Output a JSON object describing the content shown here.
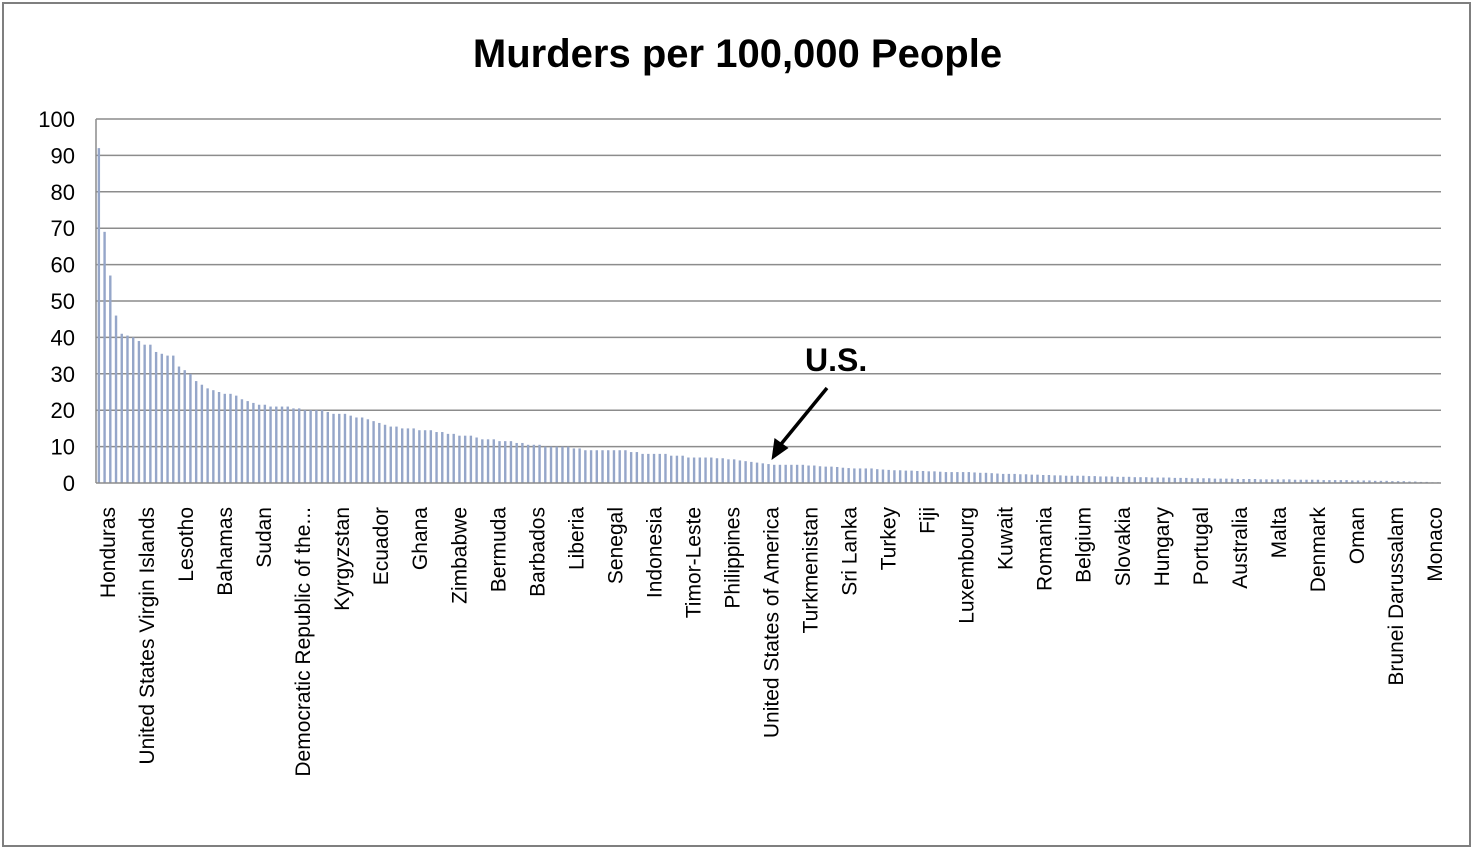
{
  "chart_data": {
    "type": "bar",
    "title": "Murders per 100,000 People",
    "xlabel": "",
    "ylabel": "",
    "ylim": [
      0,
      100
    ],
    "yticks": [
      0,
      10,
      20,
      30,
      40,
      50,
      60,
      70,
      80,
      90,
      100
    ],
    "grid": "horizontal",
    "legend": "none",
    "bar_color": "#95a6c9",
    "gridline_color": "#8c8c8c",
    "labeled_categories": [
      "Honduras",
      "United States Virgin Islands",
      "Lesotho",
      "Bahamas",
      "Sudan",
      "Democratic Republic of the...",
      "Kyrgyzstan",
      "Ecuador",
      "Ghana",
      "Zimbabwe",
      "Bermuda",
      "Barbados",
      "Liberia",
      "Senegal",
      "Indonesia",
      "Timor-Leste",
      "Philippines",
      "United States of America",
      "Turkmenistan",
      "Sri Lanka",
      "Turkey",
      "Fiji",
      "Luxembourg",
      "Kuwait",
      "Romania",
      "Belgium",
      "Slovakia",
      "Hungary",
      "Portugal",
      "Australia",
      "Malta",
      "Denmark",
      "Oman",
      "Brunei Darussalam",
      "Monaco"
    ],
    "values": [
      92,
      69,
      57,
      46,
      41,
      40.5,
      40,
      39,
      38,
      38,
      36,
      35.5,
      35,
      35,
      32,
      31,
      30,
      28,
      27,
      26,
      25.5,
      25,
      24.5,
      24.5,
      24,
      23,
      22.5,
      22,
      21.5,
      21.5,
      21,
      21,
      21,
      21,
      20.5,
      20.5,
      20,
      20,
      20,
      20,
      19.5,
      19,
      19,
      19,
      18.5,
      18,
      18,
      17.5,
      17,
      16.5,
      16,
      15.5,
      15.5,
      15,
      15,
      15,
      14.5,
      14.5,
      14.5,
      14,
      14,
      13.5,
      13.5,
      13,
      13,
      13,
      12.5,
      12,
      12,
      12,
      11.5,
      11.5,
      11.5,
      11,
      11,
      10.5,
      10.5,
      10.5,
      10,
      10,
      10,
      10,
      10,
      9.5,
      9.5,
      9,
      9,
      9,
      9,
      9,
      9,
      9,
      9,
      8.5,
      8.5,
      8,
      8,
      8,
      8,
      8,
      7.5,
      7.5,
      7.5,
      7,
      7,
      7,
      7,
      7,
      6.8,
      6.8,
      6.5,
      6.5,
      6.2,
      6,
      5.8,
      5.6,
      5.4,
      5.2,
      5,
      5,
      5,
      5,
      5,
      5,
      4.8,
      4.8,
      4.6,
      4.5,
      4.5,
      4.4,
      4.2,
      4.1,
      4,
      4,
      4,
      4,
      3.8,
      3.7,
      3.6,
      3.5,
      3.5,
      3.4,
      3.4,
      3.3,
      3.3,
      3.2,
      3.2,
      3.1,
      3,
      3,
      3,
      3,
      3,
      2.9,
      2.8,
      2.8,
      2.7,
      2.6,
      2.5,
      2.5,
      2.5,
      2.4,
      2.4,
      2.3,
      2.3,
      2.2,
      2.2,
      2.1,
      2.1,
      2,
      2,
      2,
      2,
      1.9,
      1.9,
      1.8,
      1.8,
      1.8,
      1.7,
      1.7,
      1.7,
      1.6,
      1.6,
      1.6,
      1.5,
      1.5,
      1.5,
      1.5,
      1.4,
      1.4,
      1.4,
      1.3,
      1.3,
      1.3,
      1.3,
      1.2,
      1.2,
      1.2,
      1.2,
      1.1,
      1.1,
      1.1,
      1.1,
      1,
      1,
      1,
      1,
      1,
      1,
      0.9,
      0.9,
      0.9,
      0.9,
      0.9,
      0.8,
      0.8,
      0.8,
      0.8,
      0.8,
      0.7,
      0.7,
      0.7,
      0.7,
      0.6,
      0.6,
      0.6,
      0.5,
      0.5,
      0.5,
      0.4,
      0.4,
      0.3,
      0.3,
      0.2,
      0.2
    ]
  },
  "annotation": {
    "text": "U.S.",
    "target_category": "United States of America"
  }
}
